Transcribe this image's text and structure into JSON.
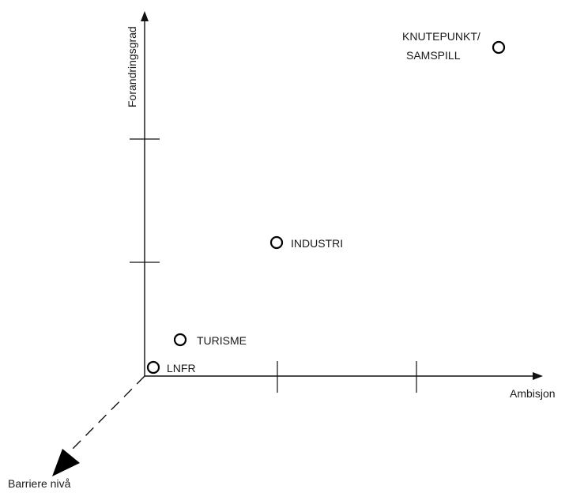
{
  "axes": {
    "y_label": "Forandringsgrad",
    "x_label": "Ambisjon",
    "z_label": "Barriere nivå"
  },
  "points": [
    {
      "id": "lnfr",
      "lines": [
        "LNFR"
      ]
    },
    {
      "id": "turisme",
      "lines": [
        "TURISME"
      ]
    },
    {
      "id": "industri",
      "lines": [
        "INDUSTRI"
      ]
    },
    {
      "id": "knutepunkt",
      "lines": [
        "KNUTEPUNKT/",
        "SAMSPILL"
      ]
    }
  ]
}
